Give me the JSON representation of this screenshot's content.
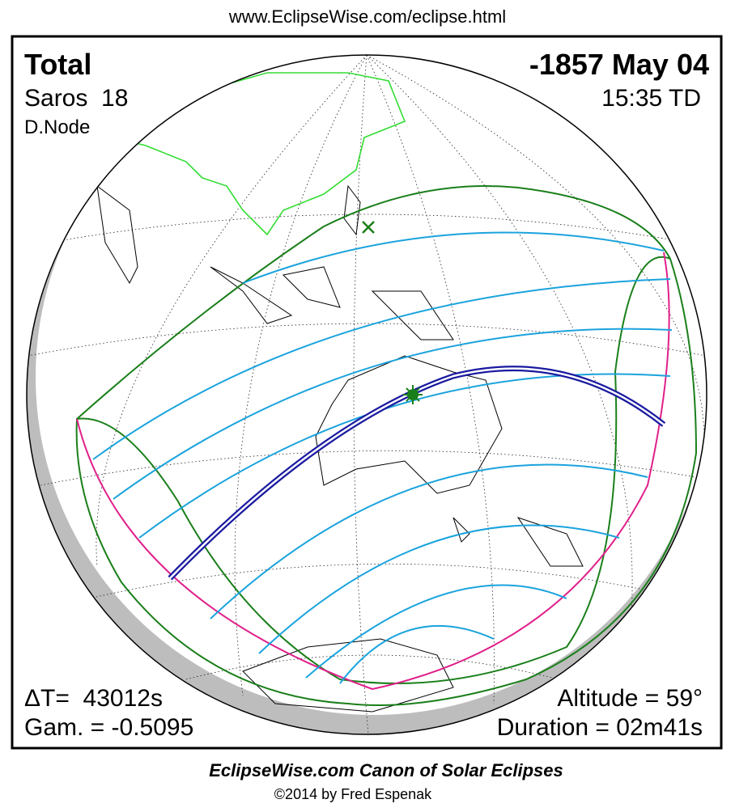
{
  "header": {
    "url": "www.EclipseWise.com/eclipse.html"
  },
  "eclipse": {
    "type": "Total",
    "date": "-1857 May 04",
    "saros": "Saros  18",
    "time": "15:35 TD",
    "node": "D.Node"
  },
  "stats": {
    "delta_t": "ΔT=  43012s",
    "gamma": "Gam. = -0.5095",
    "altitude": "Altitude = 59°",
    "duration": "Duration = 02m41s"
  },
  "footer": {
    "title": "EclipseWise.com Canon of Solar Eclipses",
    "credit": "©2014 by Fred Espenak"
  }
}
